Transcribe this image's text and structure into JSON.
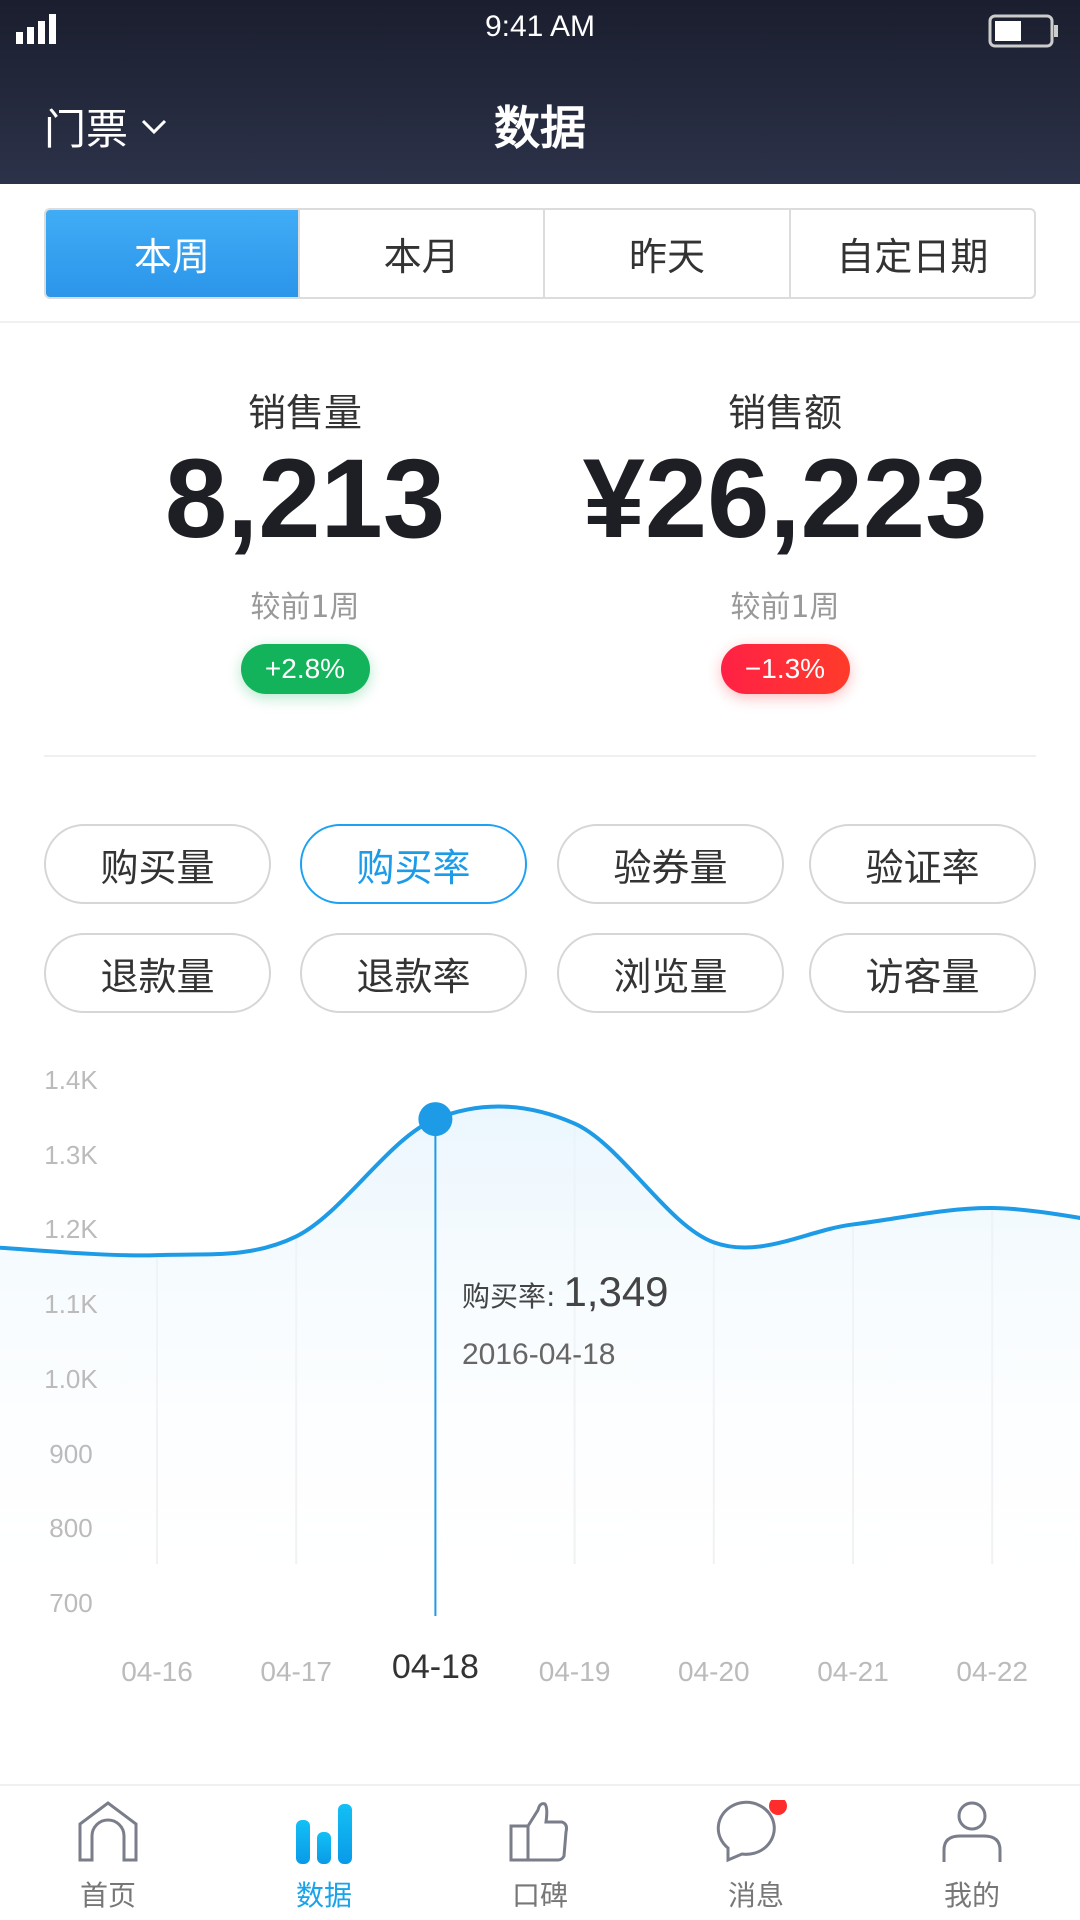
{
  "status_bar": {
    "time": "9:41 AM",
    "signal": "4 bars",
    "battery_level": 0.5
  },
  "header": {
    "menu_label": "门票",
    "title": "数据"
  },
  "period_tabs": [
    {
      "label": "本周",
      "active": true
    },
    {
      "label": "本月"
    },
    {
      "label": "昨天"
    },
    {
      "label": "自定日期"
    }
  ],
  "stats": [
    {
      "label": "销售量",
      "value": "8,213",
      "compare": "较前1周",
      "change": "+2.8%",
      "color": "#12b35a"
    },
    {
      "label": "销售额",
      "value": "¥26,223",
      "compare": "较前1周",
      "change": "−1.3%",
      "color": "#ff2e3b"
    }
  ],
  "metrics": [
    {
      "label": "购买量"
    },
    {
      "label": "购买率",
      "active": true
    },
    {
      "label": "验券量"
    },
    {
      "label": "验证率"
    },
    {
      "label": "退款量"
    },
    {
      "label": "退款率"
    },
    {
      "label": "浏览量"
    },
    {
      "label": "访客量"
    }
  ],
  "chart_data": {
    "type": "line",
    "categories": [
      "04-16",
      "04-17",
      "04-18",
      "04-19",
      "04-20",
      "04-21",
      "04-22"
    ],
    "values": [
      1167,
      1192,
      1349,
      1343,
      1184,
      1208,
      1230
    ],
    "yticks": [
      "1.4K",
      "1.3K",
      "1.2K",
      "1.1K",
      "1.0K",
      "900",
      "800",
      "700"
    ],
    "ylim": [
      700,
      1400
    ],
    "grid": "vertical",
    "selected_index": 2,
    "color": "#1e9be6",
    "tooltip": {
      "label": "购买率:",
      "value": "1,349",
      "date": "2016-04-18"
    }
  },
  "tabbar": [
    {
      "label": "首页",
      "icon": "home-icon"
    },
    {
      "label": "数据",
      "icon": "bar-chart-icon",
      "active": true
    },
    {
      "label": "口碑",
      "icon": "thumbs-up-icon"
    },
    {
      "label": "消息",
      "icon": "message-icon",
      "badge": true
    },
    {
      "label": "我的",
      "icon": "user-icon"
    }
  ]
}
